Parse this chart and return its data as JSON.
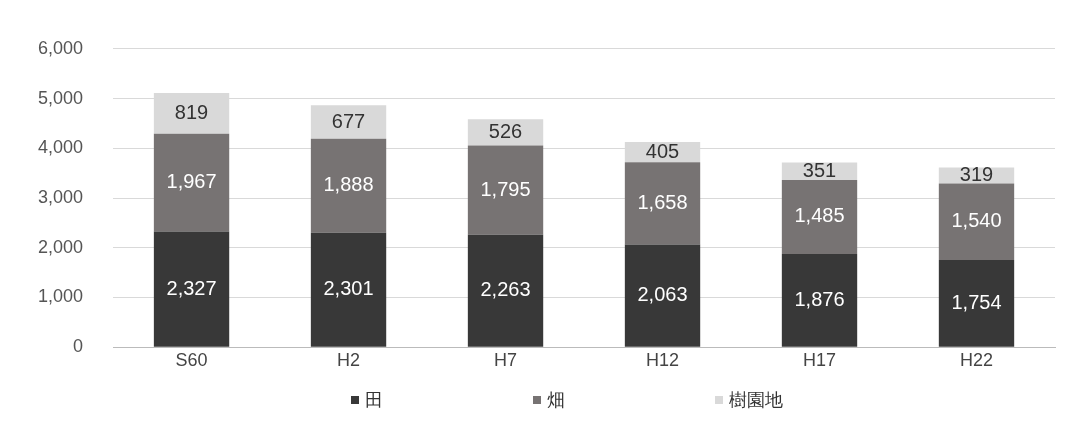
{
  "chart_data": {
    "type": "bar",
    "stacked": true,
    "categories": [
      "S60",
      "H2",
      "H7",
      "H12",
      "H17",
      "H22"
    ],
    "series": [
      {
        "name": "田",
        "color": "#383838",
        "values": [
          2327,
          2301,
          2263,
          2063,
          1876,
          1754
        ],
        "value_labels": [
          "2,327",
          "2,301",
          "2,263",
          "2,063",
          "1,876",
          "1,754"
        ]
      },
      {
        "name": "畑",
        "color": "#777373",
        "values": [
          1967,
          1888,
          1795,
          1658,
          1485,
          1540
        ],
        "value_labels": [
          "1,967",
          "1,888",
          "1,795",
          "1,658",
          "1,485",
          "1,540"
        ]
      },
      {
        "name": "樹園地",
        "color": "#d9d9d9",
        "values": [
          819,
          677,
          526,
          405,
          351,
          319
        ],
        "value_labels": [
          "819",
          "677",
          "526",
          "405",
          "351",
          "319"
        ]
      }
    ],
    "ylim": [
      0,
      6000
    ],
    "yticks": [
      {
        "value": 0,
        "label": "0"
      },
      {
        "value": 1000,
        "label": "1,000"
      },
      {
        "value": 2000,
        "label": "2,000"
      },
      {
        "value": 3000,
        "label": "3,000"
      },
      {
        "value": 4000,
        "label": "4,000"
      },
      {
        "value": 5000,
        "label": "5,000"
      },
      {
        "value": 6000,
        "label": "6,000"
      }
    ],
    "grid": "y",
    "legend": "bottom"
  }
}
